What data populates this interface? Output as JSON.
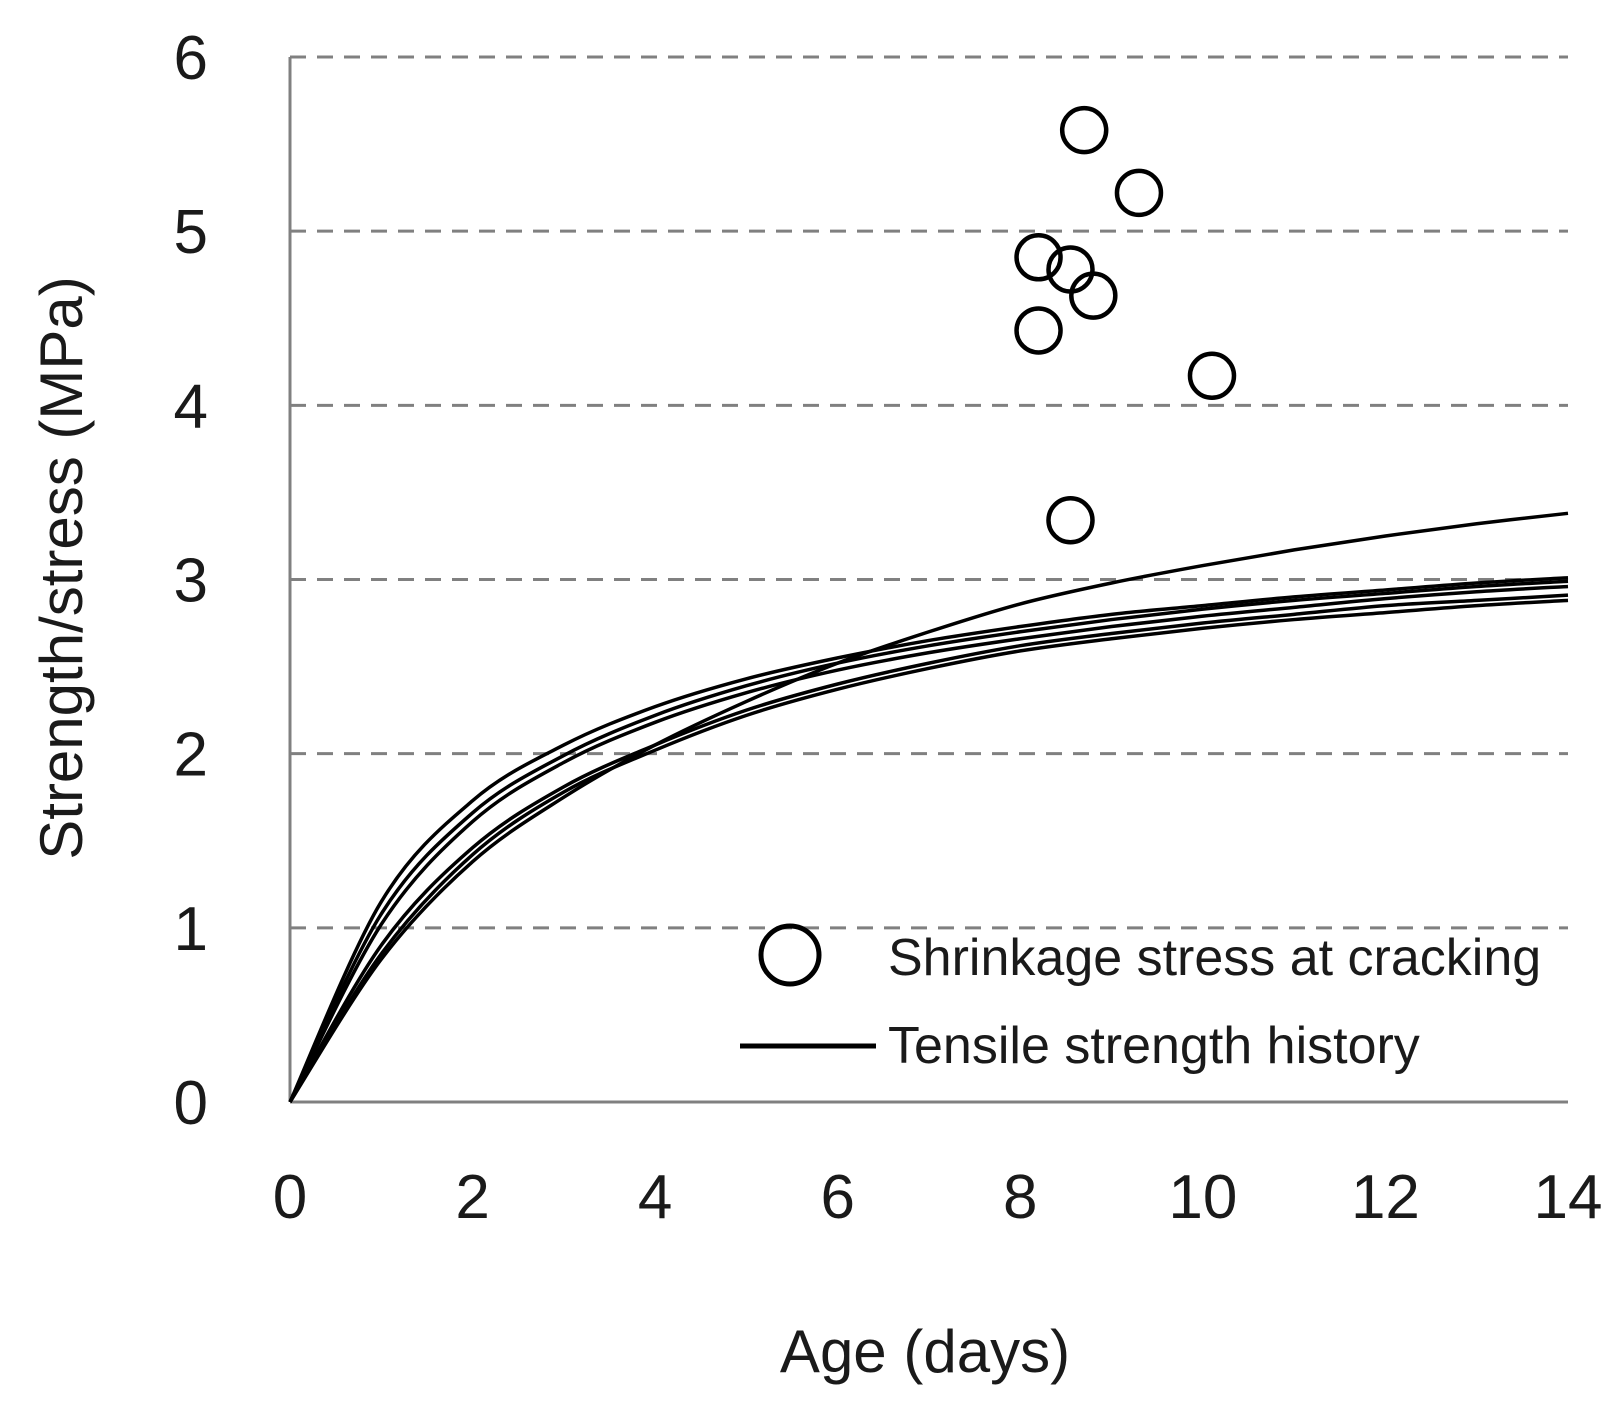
{
  "chart_data": {
    "type": "scatter",
    "title": "",
    "xlabel": "Age (days)",
    "ylabel": "Strength/stress (MPa)",
    "xlim": [
      0,
      14
    ],
    "ylim": [
      0,
      6
    ],
    "xticks": [
      0,
      2,
      4,
      6,
      8,
      10,
      12,
      14
    ],
    "yticks": [
      0,
      1,
      2,
      3,
      4,
      5,
      6
    ],
    "grid": "horizontal-dashed",
    "legend_position": "bottom-right",
    "legend": [
      {
        "label": "Shrinkage stress at cracking",
        "marker": "circle"
      },
      {
        "label": "Tensile strength history",
        "marker": "line"
      }
    ],
    "scatter_series": {
      "name": "Shrinkage stress at cracking",
      "points": [
        {
          "x": 8.7,
          "y": 5.58
        },
        {
          "x": 9.3,
          "y": 5.22
        },
        {
          "x": 8.2,
          "y": 4.85
        },
        {
          "x": 8.55,
          "y": 4.78
        },
        {
          "x": 8.8,
          "y": 4.63
        },
        {
          "x": 8.2,
          "y": 4.43
        },
        {
          "x": 10.1,
          "y": 4.17
        },
        {
          "x": 8.55,
          "y": 3.34
        }
      ]
    },
    "line_series": [
      {
        "name": "Tensile strength history",
        "x": [
          0,
          1,
          2,
          3,
          4,
          5,
          6,
          7,
          8,
          9,
          10,
          11,
          12,
          13,
          14
        ],
        "y": [
          0,
          0.85,
          1.42,
          1.78,
          2.02,
          2.22,
          2.37,
          2.49,
          2.59,
          2.66,
          2.72,
          2.77,
          2.81,
          2.85,
          2.88
        ]
      },
      {
        "name": "Tensile strength history",
        "x": [
          0,
          1,
          2,
          3,
          4,
          5,
          6,
          7,
          8,
          9,
          10,
          11,
          12,
          13,
          14
        ],
        "y": [
          0,
          0.9,
          1.46,
          1.81,
          2.05,
          2.25,
          2.4,
          2.52,
          2.62,
          2.69,
          2.75,
          2.8,
          2.85,
          2.88,
          2.91
        ]
      },
      {
        "name": "Tensile strength history",
        "x": [
          0,
          1,
          2,
          3,
          4,
          5,
          6,
          7,
          8,
          9,
          10,
          11,
          12,
          13,
          14
        ],
        "y": [
          0,
          1.02,
          1.61,
          1.95,
          2.18,
          2.35,
          2.48,
          2.58,
          2.66,
          2.73,
          2.79,
          2.84,
          2.89,
          2.93,
          2.96
        ]
      },
      {
        "name": "Tensile strength history",
        "x": [
          0,
          1,
          2,
          3,
          4,
          5,
          6,
          7,
          8,
          9,
          10,
          11,
          12,
          13,
          14
        ],
        "y": [
          0,
          1.08,
          1.66,
          1.99,
          2.22,
          2.39,
          2.52,
          2.62,
          2.7,
          2.77,
          2.83,
          2.88,
          2.92,
          2.96,
          2.99
        ]
      },
      {
        "name": "Tensile strength history",
        "x": [
          0,
          1,
          2,
          3,
          4,
          5,
          6,
          7,
          8,
          9,
          10,
          11,
          12,
          13,
          14
        ],
        "y": [
          0,
          1.15,
          1.73,
          2.05,
          2.27,
          2.43,
          2.55,
          2.65,
          2.73,
          2.8,
          2.85,
          2.9,
          2.94,
          2.98,
          3.01
        ]
      },
      {
        "name": "Tensile strength history",
        "x": [
          0,
          1,
          2,
          3,
          4,
          5,
          6,
          7,
          8,
          9,
          10,
          11,
          12,
          13,
          14
        ],
        "y": [
          0,
          0.82,
          1.38,
          1.75,
          2.05,
          2.3,
          2.52,
          2.7,
          2.86,
          2.98,
          3.08,
          3.17,
          3.25,
          3.32,
          3.38
        ]
      }
    ]
  }
}
